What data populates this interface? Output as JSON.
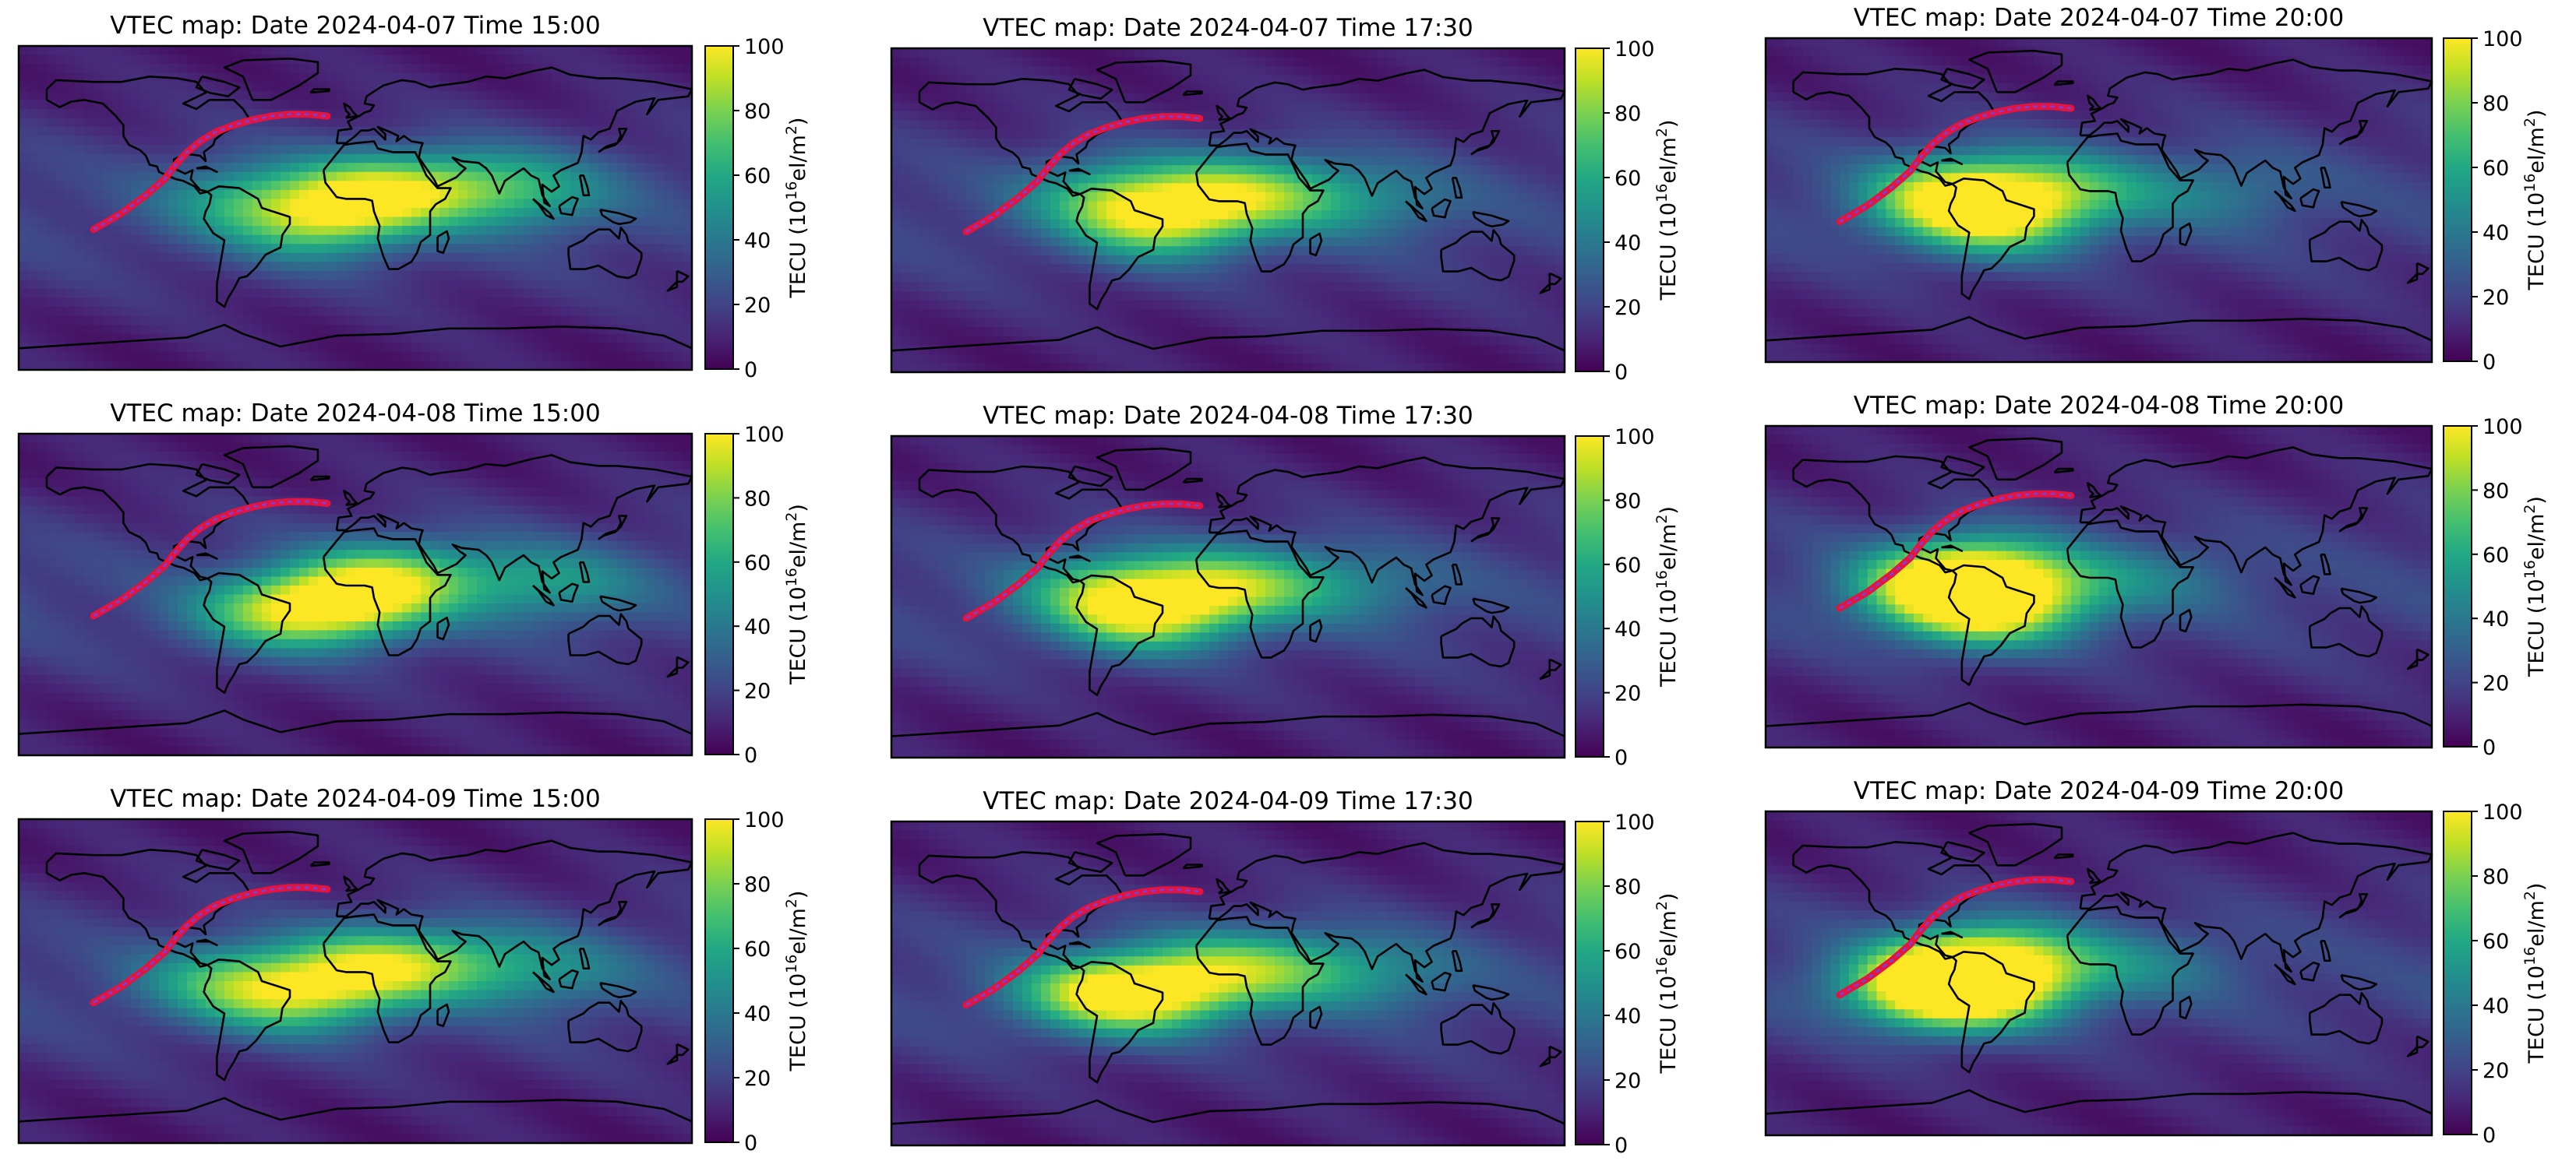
{
  "figure": {
    "colormap": "viridis",
    "colors": {
      "coast": "#000000",
      "path_edge": "#e8123a",
      "path_core": "#7b3fd6",
      "background": "#ffffff"
    }
  },
  "colorbar": {
    "label_prefix": "TECU (10",
    "label_exp": "16",
    "label_mid": "el/m",
    "label_sq": "2",
    "label_suffix": ")",
    "ticks": [
      "0",
      "20",
      "40",
      "60",
      "80",
      "100"
    ],
    "range": [
      0,
      100
    ]
  },
  "chart_data": [
    {
      "type": "heatmap",
      "title": "VTEC map: Date 2024-04-07 Time 15:00",
      "date": "2024-04-07",
      "time": "15:00",
      "vmin": 0,
      "vmax": 100,
      "colorbar_label": "TECU (10^16 el/m^2)",
      "peak_lon": 5,
      "peak_lat": 5,
      "peak_value": 88,
      "blobs": [
        {
          "lon": 10,
          "lat": 8,
          "v": 88
        },
        {
          "lon": -20,
          "lat": -8,
          "v": 72
        },
        {
          "lon": 60,
          "lat": 12,
          "v": 60
        },
        {
          "lon": 100,
          "lat": 8,
          "v": 48
        },
        {
          "lon": -60,
          "lat": 5,
          "v": 55
        }
      ]
    },
    {
      "type": "heatmap",
      "title": "VTEC map: Date 2024-04-07 Time 17:30",
      "date": "2024-04-07",
      "time": "17:30",
      "vmin": 0,
      "vmax": 100,
      "colorbar_label": "TECU (10^16 el/m^2)",
      "peak_lon": -35,
      "peak_lat": -5,
      "peak_value": 85,
      "blobs": [
        {
          "lon": -35,
          "lat": -6,
          "v": 85
        },
        {
          "lon": 0,
          "lat": 10,
          "v": 70
        },
        {
          "lon": -65,
          "lat": 8,
          "v": 62
        },
        {
          "lon": 40,
          "lat": 8,
          "v": 48
        },
        {
          "lon": 85,
          "lat": 5,
          "v": 38
        }
      ]
    },
    {
      "type": "heatmap",
      "title": "VTEC map: Date 2024-04-07 Time 20:00",
      "date": "2024-04-07",
      "time": "20:00",
      "vmin": 0,
      "vmax": 100,
      "colorbar_label": "TECU (10^16 el/m^2)",
      "peak_lon": -80,
      "peak_lat": 0,
      "peak_value": 95,
      "blobs": [
        {
          "lon": -82,
          "lat": 2,
          "v": 95
        },
        {
          "lon": -55,
          "lat": -12,
          "v": 75
        },
        {
          "lon": -35,
          "lat": 6,
          "v": 60
        },
        {
          "lon": 5,
          "lat": 5,
          "v": 42
        },
        {
          "lon": 70,
          "lat": 5,
          "v": 38
        }
      ]
    },
    {
      "type": "heatmap",
      "title": "VTEC map: Date 2024-04-08 Time 15:00",
      "date": "2024-04-08",
      "time": "15:00",
      "vmin": 0,
      "vmax": 100,
      "colorbar_label": "TECU (10^16 el/m^2)",
      "peak_lon": -5,
      "peak_lat": -5,
      "peak_value": 90,
      "blobs": [
        {
          "lon": -5,
          "lat": -5,
          "v": 90
        },
        {
          "lon": 20,
          "lat": 10,
          "v": 70
        },
        {
          "lon": -45,
          "lat": -10,
          "v": 72
        },
        {
          "lon": 80,
          "lat": 8,
          "v": 45
        },
        {
          "lon": 120,
          "lat": 5,
          "v": 40
        }
      ]
    },
    {
      "type": "heatmap",
      "title": "VTEC map: Date 2024-04-08 Time 17:30",
      "date": "2024-04-08",
      "time": "17:30",
      "vmin": 0,
      "vmax": 100,
      "colorbar_label": "TECU (10^16 el/m^2)",
      "peak_lon": -45,
      "peak_lat": -10,
      "peak_value": 88,
      "blobs": [
        {
          "lon": -45,
          "lat": -10,
          "v": 88
        },
        {
          "lon": -10,
          "lat": 5,
          "v": 72
        },
        {
          "lon": -70,
          "lat": 5,
          "v": 62
        },
        {
          "lon": 30,
          "lat": 8,
          "v": 48
        },
        {
          "lon": 80,
          "lat": 5,
          "v": 36
        }
      ]
    },
    {
      "type": "heatmap",
      "title": "VTEC map: Date 2024-04-08 Time 20:00",
      "date": "2024-04-08",
      "time": "20:00",
      "vmin": 0,
      "vmax": 100,
      "colorbar_label": "TECU (10^16 el/m^2)",
      "peak_lon": -85,
      "peak_lat": 0,
      "peak_value": 98,
      "blobs": [
        {
          "lon": -88,
          "lat": 0,
          "v": 98
        },
        {
          "lon": -60,
          "lat": -15,
          "v": 85
        },
        {
          "lon": -60,
          "lat": 10,
          "v": 70
        },
        {
          "lon": -20,
          "lat": 0,
          "v": 52
        },
        {
          "lon": 40,
          "lat": 5,
          "v": 34
        }
      ]
    },
    {
      "type": "heatmap",
      "title": "VTEC map: Date 2024-04-09 Time 15:00",
      "date": "2024-04-09",
      "time": "15:00",
      "vmin": 0,
      "vmax": 100,
      "colorbar_label": "TECU (10^16 el/m^2)",
      "peak_lon": 10,
      "peak_lat": 5,
      "peak_value": 85,
      "blobs": [
        {
          "lon": 10,
          "lat": 8,
          "v": 85
        },
        {
          "lon": -30,
          "lat": -8,
          "v": 78
        },
        {
          "lon": -70,
          "lat": 0,
          "v": 62
        },
        {
          "lon": 60,
          "lat": 10,
          "v": 55
        },
        {
          "lon": 110,
          "lat": 5,
          "v": 42
        }
      ]
    },
    {
      "type": "heatmap",
      "title": "VTEC map: Date 2024-04-09 Time 17:30",
      "date": "2024-04-09",
      "time": "17:30",
      "vmin": 0,
      "vmax": 100,
      "colorbar_label": "TECU (10^16 el/m^2)",
      "peak_lon": -40,
      "peak_lat": -5,
      "peak_value": 90,
      "blobs": [
        {
          "lon": -42,
          "lat": -6,
          "v": 90
        },
        {
          "lon": -75,
          "lat": -5,
          "v": 70
        },
        {
          "lon": 0,
          "lat": 8,
          "v": 68
        },
        {
          "lon": 45,
          "lat": 8,
          "v": 50
        },
        {
          "lon": 90,
          "lat": 5,
          "v": 38
        }
      ]
    },
    {
      "type": "heatmap",
      "title": "VTEC map: Date 2024-04-09 Time 20:00",
      "date": "2024-04-09",
      "time": "20:00",
      "vmin": 0,
      "vmax": 100,
      "colorbar_label": "TECU (10^16 el/m^2)",
      "peak_lon": -90,
      "peak_lat": -5,
      "peak_value": 100,
      "blobs": [
        {
          "lon": -95,
          "lat": -5,
          "v": 100
        },
        {
          "lon": -70,
          "lat": -12,
          "v": 92
        },
        {
          "lon": -60,
          "lat": 10,
          "v": 72
        },
        {
          "lon": -25,
          "lat": 2,
          "v": 55
        },
        {
          "lon": 35,
          "lat": 5,
          "v": 36
        }
      ]
    }
  ]
}
